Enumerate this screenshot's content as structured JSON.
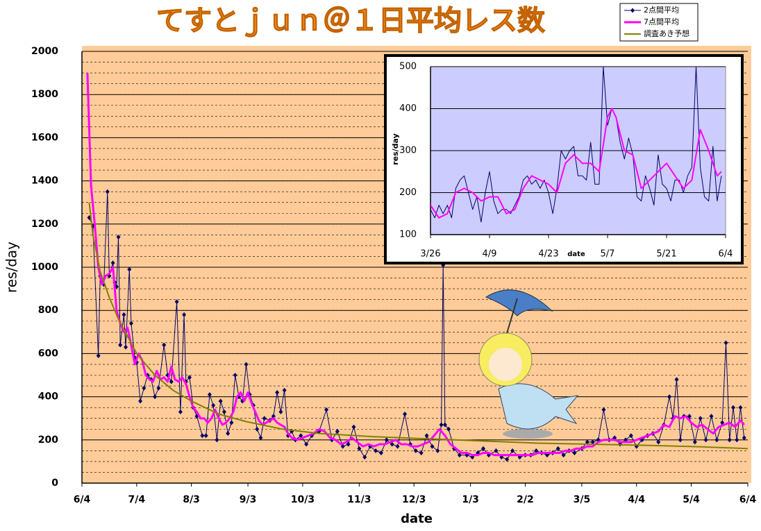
{
  "chart_data": [
    {
      "type": "line",
      "title": "てすとｊｕｎ＠１日平均レス数",
      "y_label": "res/day",
      "x_label": "date",
      "xlim": [
        0,
        365
      ],
      "xticks": [
        {
          "value": 0,
          "label": "6/4"
        },
        {
          "value": 30,
          "label": "7/4"
        },
        {
          "value": 60,
          "label": "8/3"
        },
        {
          "value": 91,
          "label": "9/3"
        },
        {
          "value": 121,
          "label": "10/3"
        },
        {
          "value": 152,
          "label": "11/3"
        },
        {
          "value": 182,
          "label": "12/3"
        },
        {
          "value": 213,
          "label": "1/3"
        },
        {
          "value": 243,
          "label": "2/2"
        },
        {
          "value": 274,
          "label": "3/5"
        },
        {
          "value": 304,
          "label": "4/4"
        },
        {
          "value": 334,
          "label": "5/4"
        },
        {
          "value": 365,
          "label": "6/4"
        }
      ],
      "ylim": [
        0,
        2000
      ],
      "yticks": [
        0,
        200,
        400,
        600,
        800,
        1000,
        1200,
        1400,
        1600,
        1800,
        2000
      ],
      "grid": true,
      "minor_grid_step": 50,
      "background": "#ffcc99",
      "legend": "top-right",
      "series": [
        {
          "name": "2点間平均",
          "color": "#000066",
          "marker": "diamond",
          "x": [
            4,
            6,
            9,
            10,
            12,
            14,
            15,
            17,
            18,
            19,
            20,
            21,
            23,
            24,
            26,
            27,
            29,
            30,
            32,
            34,
            36,
            38,
            40,
            42,
            45,
            47,
            49,
            52,
            54,
            56,
            57,
            59,
            61,
            63,
            66,
            68,
            70,
            72,
            74,
            76,
            78,
            80,
            82,
            84,
            86,
            88,
            90,
            92,
            94,
            96,
            98,
            100,
            103,
            105,
            107,
            109,
            111,
            113,
            115,
            117,
            120,
            123,
            126,
            130,
            134,
            137,
            140,
            143,
            146,
            149,
            152,
            155,
            158,
            161,
            164,
            167,
            170,
            173,
            177,
            180,
            183,
            186,
            189,
            192,
            195,
            197,
            198,
            199,
            201,
            204,
            207,
            211,
            214,
            217,
            220,
            223,
            227,
            230,
            233,
            236,
            240,
            243,
            246,
            249,
            252,
            255,
            258,
            261,
            264,
            267,
            270,
            274,
            277,
            280,
            283,
            286,
            289,
            292,
            295,
            298,
            301,
            304,
            307,
            310,
            313,
            316,
            319,
            322,
            324,
            326,
            328,
            330,
            333,
            336,
            339,
            342,
            345,
            348,
            351,
            353,
            355,
            357,
            359,
            361,
            363
          ],
          "values": [
            1230,
            1190,
            590,
            960,
            920,
            1350,
            960,
            1020,
            930,
            910,
            1140,
            640,
            780,
            630,
            990,
            740,
            580,
            560,
            380,
            440,
            500,
            480,
            400,
            440,
            640,
            500,
            470,
            840,
            330,
            780,
            470,
            490,
            350,
            310,
            220,
            220,
            410,
            360,
            200,
            380,
            330,
            230,
            280,
            500,
            400,
            380,
            550,
            410,
            360,
            250,
            210,
            300,
            290,
            310,
            420,
            330,
            430,
            220,
            240,
            200,
            220,
            180,
            220,
            240,
            340,
            200,
            240,
            170,
            180,
            260,
            160,
            120,
            170,
            150,
            140,
            200,
            180,
            170,
            320,
            180,
            150,
            140,
            220,
            170,
            150,
            270,
            1010,
            270,
            250,
            160,
            130,
            130,
            120,
            140,
            160,
            130,
            150,
            120,
            110,
            150,
            120,
            130,
            130,
            150,
            140,
            130,
            140,
            160,
            130,
            150,
            140,
            160,
            190,
            190,
            200,
            340,
            200,
            210,
            180,
            200,
            220,
            170,
            200,
            220,
            230,
            190,
            270,
            400,
            300,
            480,
            200,
            310,
            310,
            190,
            300,
            200,
            310,
            200,
            280,
            650,
            200,
            350,
            200,
            350,
            210
          ]
        },
        {
          "name": "7点間平均",
          "color": "#ff00ff",
          "width": 3,
          "x": [
            3,
            5,
            7,
            9,
            11,
            13,
            15,
            17,
            19,
            21,
            23,
            25,
            27,
            29,
            31,
            33,
            35,
            37,
            39,
            41,
            43,
            45,
            47,
            49,
            51,
            53,
            55,
            57,
            59,
            61,
            63,
            65,
            67,
            69,
            71,
            73,
            75,
            77,
            79,
            81,
            83,
            85,
            87,
            89,
            91,
            93,
            95,
            97,
            99,
            101,
            103,
            105,
            107,
            109,
            111,
            113,
            115,
            118,
            121,
            124,
            127,
            130,
            133,
            136,
            139,
            142,
            145,
            148,
            151,
            154,
            157,
            160,
            163,
            166,
            169,
            172,
            175,
            178,
            181,
            184,
            187,
            190,
            193,
            196,
            199,
            202,
            205,
            208,
            211,
            214,
            217,
            220,
            223,
            226,
            229,
            232,
            235,
            238,
            241,
            244,
            247,
            250,
            253,
            256,
            259,
            262,
            265,
            268,
            271,
            274,
            277,
            280,
            283,
            286,
            289,
            292,
            295,
            298,
            301,
            304,
            307,
            310,
            313,
            316,
            319,
            322,
            325,
            328,
            331,
            334,
            337,
            340,
            343,
            346,
            349,
            352,
            355,
            358,
            361,
            363
          ],
          "values": [
            1900,
            1380,
            1200,
            1000,
            920,
            960,
            970,
            1000,
            800,
            740,
            700,
            720,
            640,
            550,
            600,
            570,
            500,
            480,
            470,
            520,
            480,
            490,
            470,
            540,
            480,
            470,
            490,
            460,
            400,
            350,
            330,
            300,
            300,
            280,
            300,
            340,
            300,
            270,
            280,
            300,
            330,
            400,
            420,
            380,
            420,
            370,
            330,
            290,
            270,
            280,
            290,
            300,
            280,
            270,
            260,
            230,
            210,
            200,
            210,
            220,
            230,
            250,
            240,
            210,
            200,
            180,
            190,
            210,
            190,
            170,
            180,
            170,
            180,
            180,
            190,
            200,
            180,
            180,
            170,
            170,
            180,
            190,
            220,
            250,
            220,
            180,
            160,
            140,
            140,
            130,
            130,
            140,
            140,
            130,
            130,
            130,
            130,
            130,
            130,
            130,
            130,
            140,
            140,
            140,
            140,
            140,
            150,
            150,
            160,
            160,
            170,
            170,
            190,
            200,
            200,
            200,
            190,
            190,
            190,
            200,
            210,
            220,
            230,
            240,
            270,
            260,
            310,
            300,
            310,
            280,
            260,
            270,
            250,
            230,
            260,
            270,
            280,
            260,
            290,
            270
          ]
        },
        {
          "name": "調査あき予想",
          "color": "#808000",
          "width": 2,
          "x": [
            4,
            6,
            10,
            15,
            20,
            30,
            40,
            50,
            60,
            75,
            90,
            110,
            130,
            160,
            190,
            220,
            250,
            280,
            310,
            340,
            365
          ],
          "values": [
            1300,
            1150,
            980,
            860,
            760,
            600,
            500,
            430,
            380,
            320,
            285,
            250,
            230,
            215,
            205,
            195,
            185,
            180,
            175,
            168,
            160
          ]
        }
      ]
    },
    {
      "type": "line",
      "y_label": "res/day",
      "x_label": "date",
      "xlim": [
        0,
        70
      ],
      "xticks": [
        {
          "value": 0,
          "label": "3/26"
        },
        {
          "value": 14,
          "label": "4/9"
        },
        {
          "value": 28,
          "label": "4/23"
        },
        {
          "value": 42,
          "label": "5/7"
        },
        {
          "value": 56,
          "label": "5/21"
        },
        {
          "value": 70,
          "label": "6/4"
        }
      ],
      "ylim": [
        100,
        500
      ],
      "yticks": [
        100,
        200,
        300,
        400,
        500
      ],
      "grid": true,
      "background": "#ccccff",
      "series": [
        {
          "name": "2点間平均",
          "color": "#000066",
          "width": 1,
          "x": [
            0,
            1,
            2,
            3,
            4,
            5,
            6,
            7,
            8,
            9,
            10,
            11,
            12,
            13,
            14,
            15,
            16,
            17,
            18,
            19,
            20,
            21,
            22,
            23,
            24,
            25,
            26,
            27,
            28,
            29,
            30,
            31,
            32,
            33,
            34,
            35,
            36,
            37,
            38,
            39,
            40,
            41,
            42,
            43,
            44,
            45,
            46,
            47,
            48,
            49,
            50,
            51,
            52,
            53,
            54,
            55,
            56,
            57,
            58,
            59,
            60,
            61,
            62,
            63,
            64,
            65,
            66,
            67,
            68,
            69
          ],
          "values": [
            160,
            140,
            170,
            150,
            170,
            140,
            210,
            230,
            240,
            200,
            160,
            190,
            130,
            200,
            250,
            180,
            150,
            160,
            160,
            150,
            170,
            190,
            230,
            240,
            220,
            230,
            210,
            230,
            200,
            150,
            210,
            300,
            280,
            300,
            310,
            240,
            240,
            230,
            320,
            220,
            220,
            500,
            360,
            400,
            380,
            320,
            280,
            330,
            290,
            190,
            180,
            240,
            210,
            170,
            290,
            220,
            210,
            180,
            230,
            230,
            200,
            240,
            260,
            500,
            260,
            190,
            180,
            310,
            180,
            240
          ]
        },
        {
          "name": "7点間平均",
          "color": "#ff00ff",
          "width": 2,
          "x": [
            0,
            2,
            4,
            6,
            8,
            10,
            12,
            14,
            16,
            18,
            20,
            22,
            24,
            26,
            28,
            30,
            32,
            34,
            36,
            38,
            40,
            42,
            43,
            44,
            46,
            48,
            50,
            52,
            54,
            56,
            58,
            60,
            62,
            64,
            66,
            68,
            69
          ],
          "values": [
            170,
            140,
            150,
            200,
            210,
            200,
            180,
            190,
            190,
            150,
            160,
            210,
            240,
            230,
            220,
            200,
            270,
            290,
            270,
            270,
            250,
            380,
            400,
            380,
            300,
            290,
            210,
            230,
            250,
            270,
            240,
            210,
            230,
            350,
            300,
            240,
            250
          ]
        }
      ]
    }
  ]
}
